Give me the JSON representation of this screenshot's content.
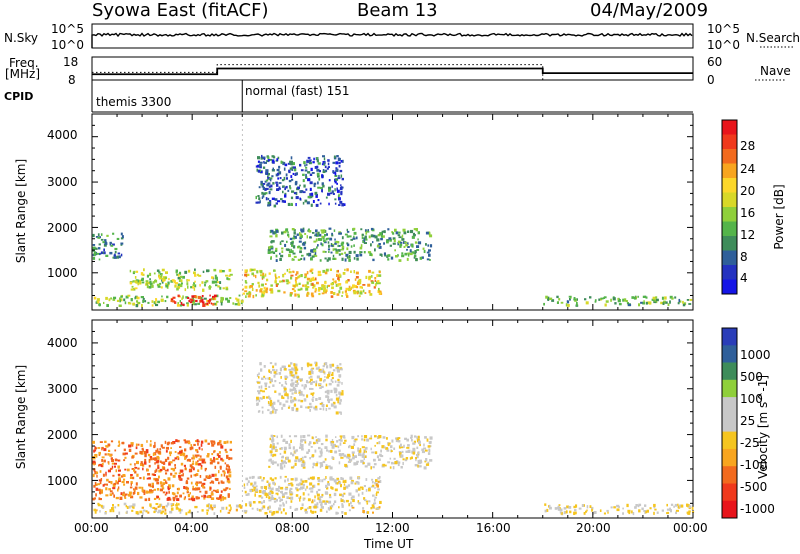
{
  "header": {
    "title": "Syowa East (fitACF)",
    "beam": "Beam 13",
    "date": "04/May/2009"
  },
  "top_panels": {
    "nsky_label": "N.Sky",
    "nsky_ticks": [
      "10^5",
      "10^0"
    ],
    "nsearch_label": "N.Search",
    "nsearch_ticks": [
      "10^5",
      "10^0"
    ],
    "freq_label_1": "Freq.",
    "freq_label_2": "[MHz]",
    "freq_ticks": [
      "18",
      "8"
    ],
    "nave_label": "Nave",
    "nave_ticks": [
      "60",
      "0"
    ],
    "cpid_label": "CPID",
    "cpid_modes": [
      {
        "name": "themis 3300",
        "start_hour": 0
      },
      {
        "name": "normal (fast) 151",
        "start_hour": 6.0
      }
    ]
  },
  "axes": {
    "x_ticks": [
      "00:00",
      "04:00",
      "08:00",
      "12:00",
      "16:00",
      "20:00",
      "00:00"
    ],
    "x_label": "Time UT",
    "y_label": "Slant Range [km]",
    "y_ticks": [
      "4000",
      "3000",
      "2000",
      "1000"
    ]
  },
  "power_colorbar": {
    "label": "Power [dB]",
    "ticks": [
      "28",
      "24",
      "20",
      "16",
      "12",
      "8",
      "4"
    ],
    "colors": [
      "#e8141b",
      "#f0391c",
      "#f26a1e",
      "#f8a51f",
      "#fcd72a",
      "#d8d828",
      "#8fcf3a",
      "#54b44a",
      "#3e8c5a",
      "#2f5f9a",
      "#2432c0",
      "#1515e6"
    ]
  },
  "velocity_colorbar": {
    "label": "Velocity [m s^-1]",
    "ticks": [
      "1000",
      "500",
      "100",
      "25",
      "-25",
      "-100",
      "-500",
      "-1000"
    ],
    "colors": [
      "#2a3db8",
      "#2f5f9a",
      "#3e8c5a",
      "#8fcf3a",
      "#c8c8c8",
      "#c8c8c8",
      "#f5c51f",
      "#f8a51f",
      "#f26a1e",
      "#f0391c",
      "#e8141b"
    ]
  },
  "chart_data": {
    "type": "heatmap",
    "x_range_hours": [
      0,
      24
    ],
    "y_range_km": [
      180,
      4500
    ],
    "power_panel": {
      "title": "",
      "ylabel": "Slant Range [km]",
      "colorbar_label": "Power [dB]",
      "colorbar_range": [
        0,
        30
      ],
      "echo_regions": [
        {
          "t0": 0.0,
          "t1": 6.0,
          "r0": 300,
          "r1": 520,
          "value": 14
        },
        {
          "t0": 3.0,
          "t1": 5.0,
          "r0": 300,
          "r1": 520,
          "value": 28
        },
        {
          "t0": 0.0,
          "t1": 1.2,
          "r0": 1300,
          "r1": 1900,
          "value": 8
        },
        {
          "t0": 1.5,
          "t1": 5.5,
          "r0": 650,
          "r1": 1100,
          "value": 14
        },
        {
          "t0": 6.0,
          "t1": 11.5,
          "r0": 500,
          "r1": 1100,
          "value": 18
        },
        {
          "t0": 7.0,
          "t1": 13.5,
          "r0": 1300,
          "r1": 2000,
          "value": 10
        },
        {
          "t0": 6.5,
          "t1": 10.0,
          "r0": 2500,
          "r1": 3600,
          "value": 6
        },
        {
          "t0": 18.0,
          "t1": 24.0,
          "r0": 300,
          "r1": 500,
          "value": 12
        }
      ]
    },
    "velocity_panel": {
      "title": "",
      "ylabel": "Slant Range [km]",
      "colorbar_label": "Velocity [m s^-1]",
      "colorbar_range": [
        -1000,
        1000
      ],
      "echo_regions": [
        {
          "t0": 0.0,
          "t1": 6.0,
          "r0": 300,
          "r1": 520,
          "value": -150
        },
        {
          "t0": 0.0,
          "t1": 5.5,
          "r0": 600,
          "r1": 1900,
          "value": -500
        },
        {
          "t0": 6.0,
          "t1": 11.5,
          "r0": 300,
          "r1": 1100,
          "value": -80
        },
        {
          "t0": 7.0,
          "t1": 13.5,
          "r0": 1300,
          "r1": 2000,
          "value": 0
        },
        {
          "t0": 6.5,
          "t1": 10.0,
          "r0": 2500,
          "r1": 3600,
          "value": 0
        },
        {
          "t0": 18.0,
          "t1": 24.0,
          "r0": 300,
          "r1": 500,
          "value": -60
        }
      ]
    },
    "freq_mhz": [
      {
        "t0": 0.0,
        "t1": 5.0,
        "value": 10.5
      },
      {
        "t0": 5.0,
        "t1": 18.0,
        "value": 13.0
      },
      {
        "t0": 18.0,
        "t1": 24.0,
        "value": 11.0
      }
    ],
    "nave": [
      {
        "t0": 0.0,
        "t1": 5.0,
        "value": 20
      },
      {
        "t0": 5.0,
        "t1": 18.0,
        "value": 40
      },
      {
        "t0": 18.0,
        "t1": 24.0,
        "value": 0
      }
    ]
  }
}
